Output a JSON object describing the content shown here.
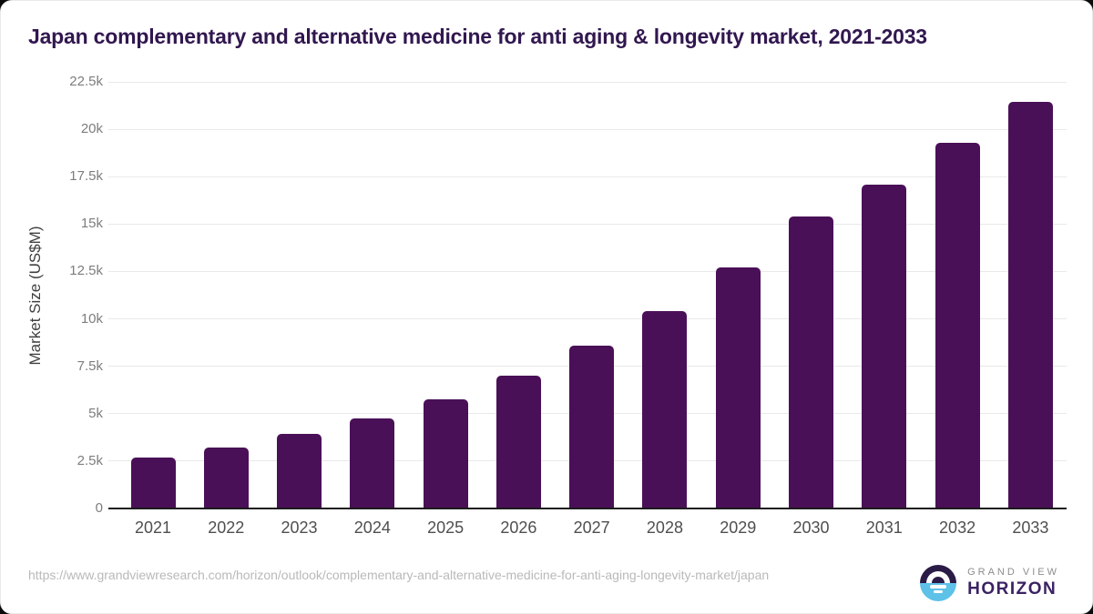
{
  "title": "Japan complementary and alternative medicine for anti aging & longevity market, 2021-2033",
  "chart_data": {
    "type": "bar",
    "title": "Japan complementary and alternative medicine for anti aging & longevity market, 2021-2033",
    "xlabel": "",
    "ylabel": "Market Size (US$M)",
    "categories": [
      "2021",
      "2022",
      "2023",
      "2024",
      "2025",
      "2026",
      "2027",
      "2028",
      "2029",
      "2030",
      "2031",
      "2032",
      "2033"
    ],
    "values": [
      2700,
      3200,
      3950,
      4750,
      5750,
      7000,
      8600,
      10400,
      12700,
      15400,
      17100,
      19300,
      21450
    ],
    "ylim": [
      0,
      22500
    ],
    "ytick_step": 2500,
    "ytick_labels": [
      "0",
      "2.5k",
      "5k",
      "7.5k",
      "10k",
      "12.5k",
      "15k",
      "17.5k",
      "20k",
      "22.5k"
    ],
    "grid": true,
    "legend": "none",
    "bar_color": "#4a1057"
  },
  "colors": {
    "title": "#31174f",
    "bar": "#4a1057",
    "gridline": "#e9e9e9",
    "axis_line": "#1b1b1b",
    "y_tick": "#7d7d7d",
    "x_tick": "#4f4f4f",
    "logo_dark": "#2b1b47",
    "logo_blue": "#5ec1e8",
    "logo_purple_text": "#3b2263"
  },
  "footer": {
    "source_url": "https://www.grandviewresearch.com/horizon/outlook/complementary-and-alternative-medicine-for-anti-aging-longevity-market/japan",
    "logo": {
      "top_text": "GRAND VIEW",
      "bottom_text": "HORIZON"
    }
  }
}
